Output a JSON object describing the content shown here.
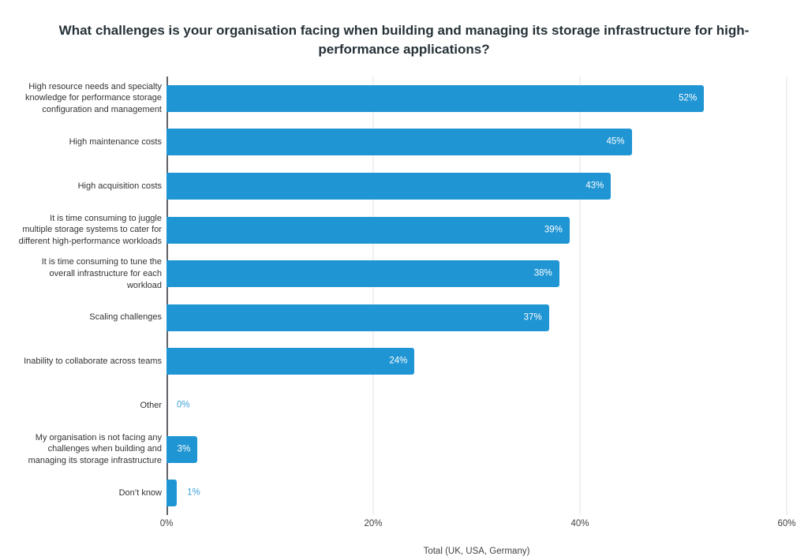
{
  "chart_data": {
    "type": "bar",
    "orientation": "horizontal",
    "title": "What challenges is your organisation facing when building and managing its storage infrastructure for high-performance applications?",
    "title_lines": [
      "What challenges is your organisation facing when building and managing its storage infrastructure for high-",
      "performance applications?"
    ],
    "xlabel": "Total (UK, USA, Germany)",
    "ylabel": "",
    "xlim": [
      0,
      60
    ],
    "x_ticks": [
      "0%",
      "20%",
      "40%",
      "60%"
    ],
    "x_tick_values": [
      0,
      20,
      40,
      60
    ],
    "grid": true,
    "legend": "none",
    "bar_color": "#2095d3",
    "inside_label_color": "#ffffff",
    "outside_label_color": "#41a4da",
    "categories": [
      "High resource needs and specialty knowledge for performance storage configuration and management",
      "High maintenance costs",
      "High acquisition costs",
      "It is time consuming to juggle multiple storage systems to cater for different high-performance workloads",
      "It is time consuming to tune the overall infrastructure for each workload",
      "Scaling challenges",
      "Inability to collaborate across teams",
      "Other",
      "My organisation is not facing any challenges when building and managing its storage infrastructure",
      "Don’t know"
    ],
    "category_lines": [
      [
        "High resource needs and specialty",
        "knowledge for performance storage",
        "configuration and management"
      ],
      [
        "High maintenance costs"
      ],
      [
        "High acquisition costs"
      ],
      [
        "It is time consuming to juggle",
        "multiple storage systems to cater for",
        "different high-performance workloads"
      ],
      [
        "It is time consuming to tune the",
        "overall infrastructure for each",
        "workload"
      ],
      [
        "Scaling challenges"
      ],
      [
        "Inability to collaborate across teams"
      ],
      [
        "Other"
      ],
      [
        "My organisation is not facing any",
        "challenges when building and",
        "managing its storage infrastructure"
      ],
      [
        "Don’t know"
      ]
    ],
    "values": [
      52,
      45,
      43,
      39,
      38,
      37,
      24,
      0,
      3,
      1
    ],
    "value_labels": [
      "52%",
      "45%",
      "43%",
      "39%",
      "38%",
      "37%",
      "24%",
      "0%",
      "3%",
      "1%"
    ],
    "value_label_positions": [
      "inside",
      "inside",
      "inside",
      "inside",
      "inside",
      "inside",
      "inside",
      "outside",
      "inside",
      "outside"
    ]
  }
}
